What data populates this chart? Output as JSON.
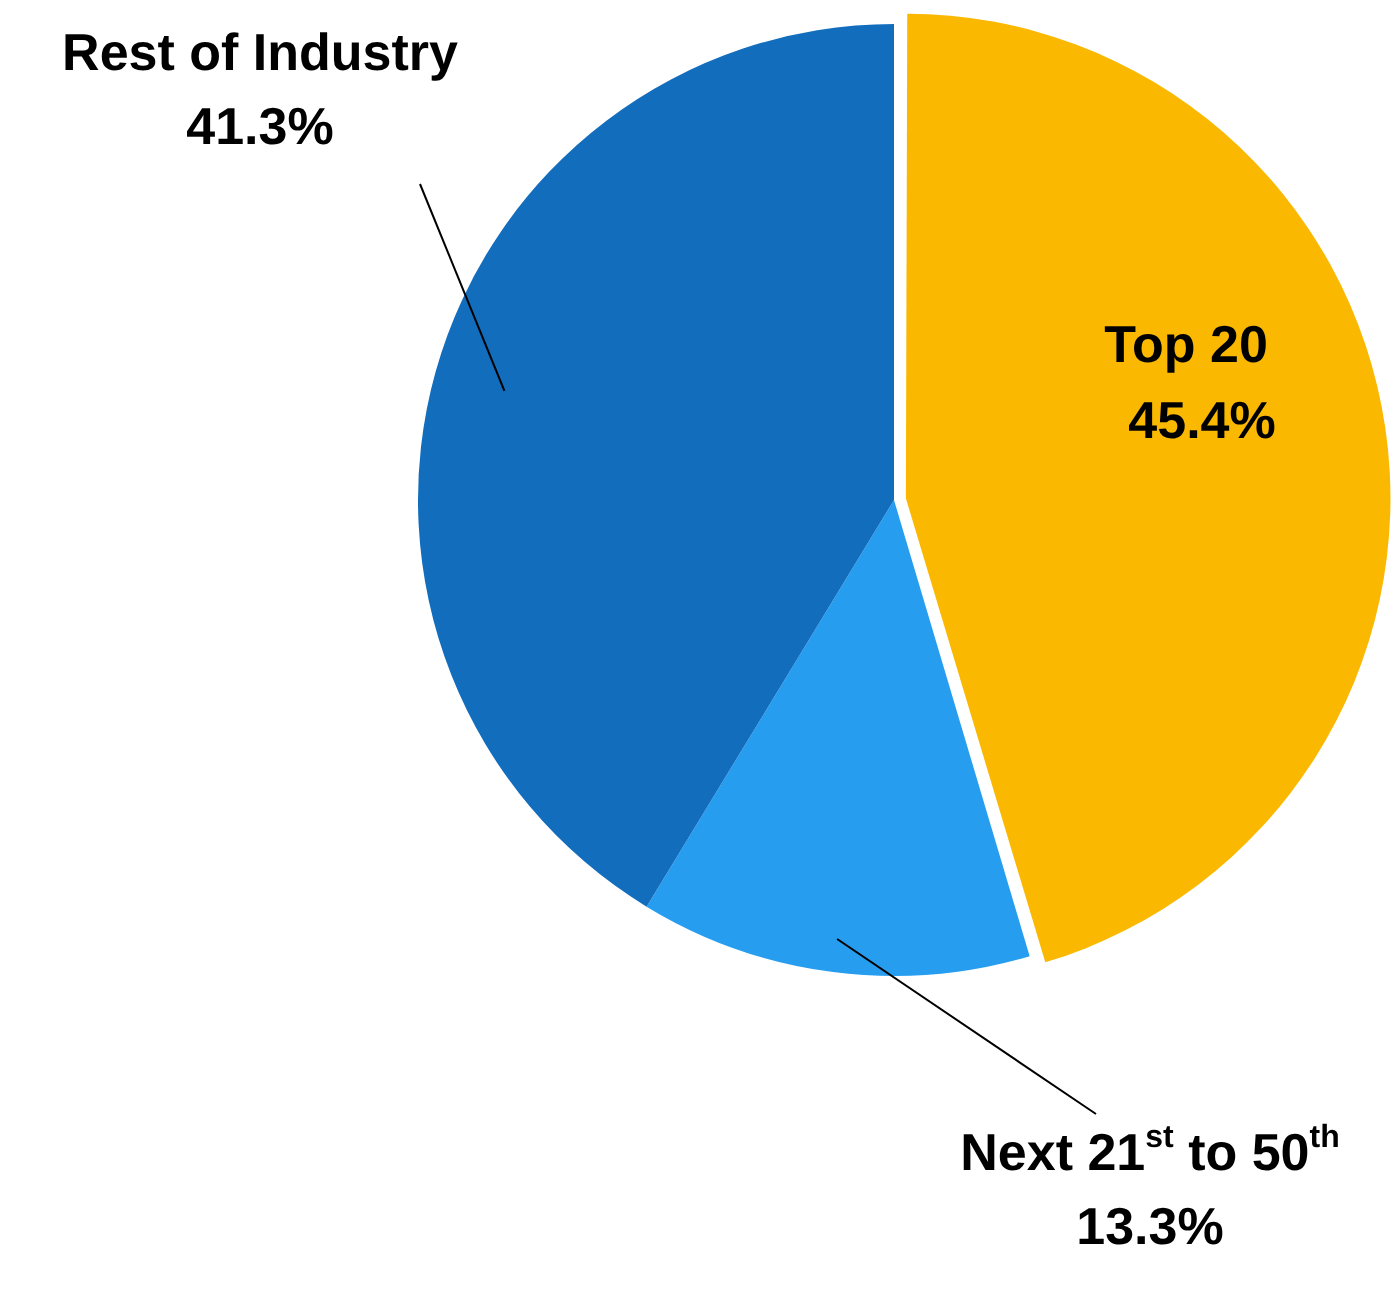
{
  "chart_data": {
    "type": "pie",
    "categories": [
      "Top 20",
      "Next 21$^{st}$ to 50$^{th}$",
      "Rest of Industry"
    ],
    "values": [
      45.4,
      13.3,
      41.3
    ],
    "colors": [
      "#fbb800",
      "#279df0",
      "#126dbd"
    ],
    "value_labels": [
      "45.4%",
      "13.3%",
      "41.3%"
    ],
    "legend": false
  }
}
